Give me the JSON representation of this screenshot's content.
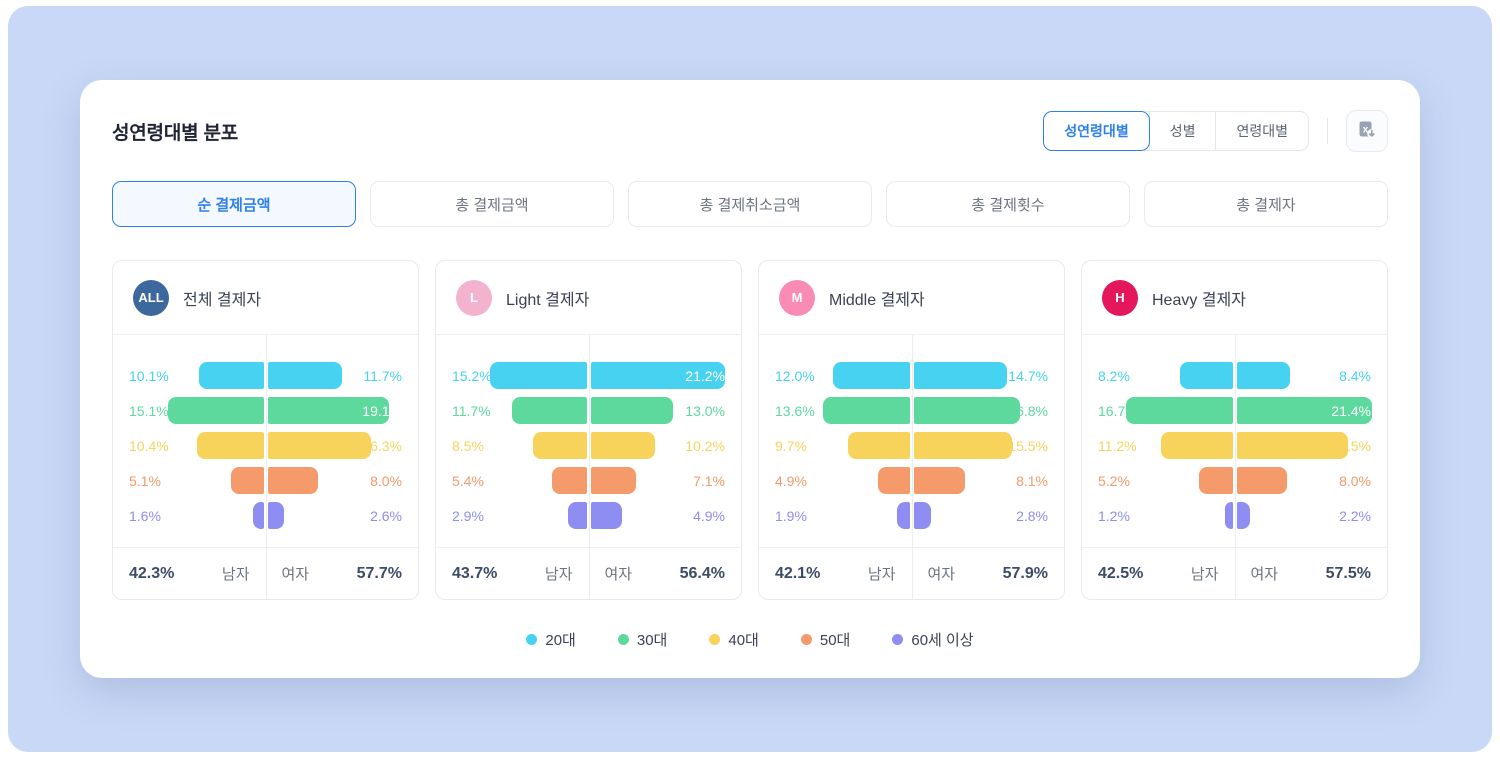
{
  "panel": {
    "title": "성연령대별 분포",
    "view_tabs": [
      {
        "label": "성연령대별",
        "active": true
      },
      {
        "label": "성별",
        "active": false
      },
      {
        "label": "연령대별",
        "active": false
      }
    ],
    "export_icon": "excel-download-icon",
    "metric_tabs": [
      {
        "label": "순 결제금액",
        "active": true
      },
      {
        "label": "총 결제금액",
        "active": false
      },
      {
        "label": "총 결제취소금액",
        "active": false
      },
      {
        "label": "총 결제횟수",
        "active": false
      },
      {
        "label": "총 결제자",
        "active": false
      }
    ]
  },
  "gender_labels": {
    "male": "남자",
    "female": "여자"
  },
  "colors": {
    "accent_blue": "#2f80ed",
    "background_blue": "#c9d8f7",
    "series": [
      "#47d2f1",
      "#5ed99e",
      "#f8d35c",
      "#f49a6b",
      "#8d8df2"
    ]
  },
  "chart_data": {
    "type": "bar",
    "subtype": "butterfly-pyramid",
    "categories": [
      "20대",
      "30대",
      "40대",
      "50대",
      "60세 이상"
    ],
    "unit": "%",
    "legend_position": "bottom",
    "groups": [
      {
        "badge": "ALL",
        "badge_color": "#3d689d",
        "title": "전체 결제자",
        "male": [
          10.1,
          15.1,
          10.4,
          5.1,
          1.6
        ],
        "female": [
          11.7,
          19.1,
          16.3,
          8.0,
          2.6
        ],
        "male_total": "42.3%",
        "female_total": "57.7%"
      },
      {
        "badge": "L",
        "badge_color": "#f3b3cf",
        "title": "Light 결제자",
        "male": [
          15.2,
          11.7,
          8.5,
          5.4,
          2.9
        ],
        "female": [
          21.2,
          13.0,
          10.2,
          7.1,
          4.9
        ],
        "male_total": "43.7%",
        "female_total": "56.4%"
      },
      {
        "badge": "M",
        "badge_color": "#f98bb4",
        "title": "Middle 결제자",
        "male": [
          12.0,
          13.6,
          9.7,
          4.9,
          1.9
        ],
        "female": [
          14.7,
          16.8,
          15.5,
          8.1,
          2.8
        ],
        "male_total": "42.1%",
        "female_total": "57.9%"
      },
      {
        "badge": "H",
        "badge_color": "#e4175c",
        "title": "Heavy 결제자",
        "male": [
          8.2,
          16.7,
          11.2,
          5.2,
          1.2
        ],
        "female": [
          8.4,
          21.4,
          17.5,
          8.0,
          2.2
        ],
        "male_total": "42.5%",
        "female_total": "57.5%"
      }
    ]
  }
}
